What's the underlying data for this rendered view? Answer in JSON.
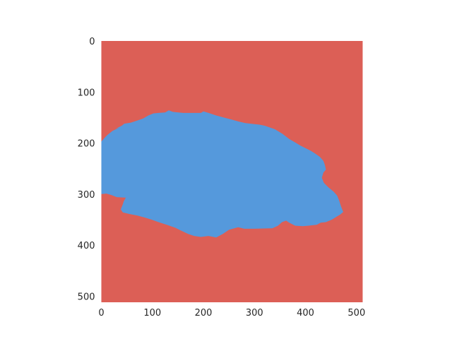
{
  "chart_data": {
    "type": "heatmap",
    "title": "",
    "xlabel": "",
    "ylabel": "",
    "xlim": [
      0,
      512
    ],
    "ylim": [
      512,
      0
    ],
    "y_inverted": true,
    "grid": false,
    "x_ticks": [
      "0",
      "100",
      "200",
      "300",
      "400",
      "500"
    ],
    "y_ticks": [
      "0",
      "100",
      "200",
      "300",
      "400",
      "500"
    ],
    "x_tick_values": [
      0,
      100,
      200,
      300,
      400,
      500
    ],
    "y_tick_values": [
      0,
      100,
      200,
      300,
      400,
      500
    ],
    "colors": {
      "background_class": "#dc5f56",
      "region_class": "#5599dc"
    },
    "region_outline": [
      [
        0,
        197
      ],
      [
        8,
        188
      ],
      [
        12,
        184
      ],
      [
        22,
        176
      ],
      [
        35,
        170
      ],
      [
        28,
        172
      ],
      [
        40,
        166
      ],
      [
        45,
        162
      ],
      [
        58,
        160
      ],
      [
        70,
        156
      ],
      [
        82,
        152
      ],
      [
        92,
        146
      ],
      [
        102,
        142
      ],
      [
        112,
        141
      ],
      [
        125,
        140
      ],
      [
        132,
        136
      ],
      [
        140,
        139
      ],
      [
        160,
        141
      ],
      [
        180,
        141
      ],
      [
        195,
        141
      ],
      [
        200,
        138
      ],
      [
        210,
        141
      ],
      [
        225,
        146
      ],
      [
        240,
        150
      ],
      [
        255,
        154
      ],
      [
        270,
        158
      ],
      [
        282,
        161
      ],
      [
        300,
        163
      ],
      [
        310,
        164
      ],
      [
        320,
        166
      ],
      [
        340,
        173
      ],
      [
        355,
        182
      ],
      [
        368,
        192
      ],
      [
        380,
        199
      ],
      [
        390,
        205
      ],
      [
        400,
        210
      ],
      [
        410,
        215
      ],
      [
        418,
        220
      ],
      [
        428,
        227
      ],
      [
        435,
        235
      ],
      [
        438,
        243
      ],
      [
        440,
        252
      ],
      [
        435,
        258
      ],
      [
        432,
        268
      ],
      [
        436,
        278
      ],
      [
        445,
        287
      ],
      [
        455,
        295
      ],
      [
        462,
        303
      ],
      [
        466,
        313
      ],
      [
        470,
        325
      ],
      [
        474,
        335
      ],
      [
        468,
        340
      ],
      [
        460,
        345
      ],
      [
        452,
        350
      ],
      [
        440,
        355
      ],
      [
        430,
        356
      ],
      [
        422,
        360
      ],
      [
        405,
        362
      ],
      [
        395,
        363
      ],
      [
        380,
        362
      ],
      [
        368,
        356
      ],
      [
        362,
        352
      ],
      [
        354,
        355
      ],
      [
        346,
        362
      ],
      [
        335,
        367
      ],
      [
        300,
        368
      ],
      [
        280,
        368
      ],
      [
        268,
        365
      ],
      [
        250,
        370
      ],
      [
        238,
        378
      ],
      [
        225,
        385
      ],
      [
        210,
        382
      ],
      [
        195,
        384
      ],
      [
        182,
        382
      ],
      [
        170,
        378
      ],
      [
        155,
        371
      ],
      [
        145,
        366
      ],
      [
        128,
        360
      ],
      [
        112,
        355
      ],
      [
        98,
        350
      ],
      [
        85,
        346
      ],
      [
        70,
        342
      ],
      [
        55,
        339
      ],
      [
        42,
        336
      ],
      [
        38,
        330
      ],
      [
        42,
        320
      ],
      [
        44,
        314
      ],
      [
        48,
        307
      ],
      [
        30,
        306
      ],
      [
        20,
        302
      ],
      [
        10,
        299
      ],
      [
        0,
        300
      ]
    ]
  }
}
